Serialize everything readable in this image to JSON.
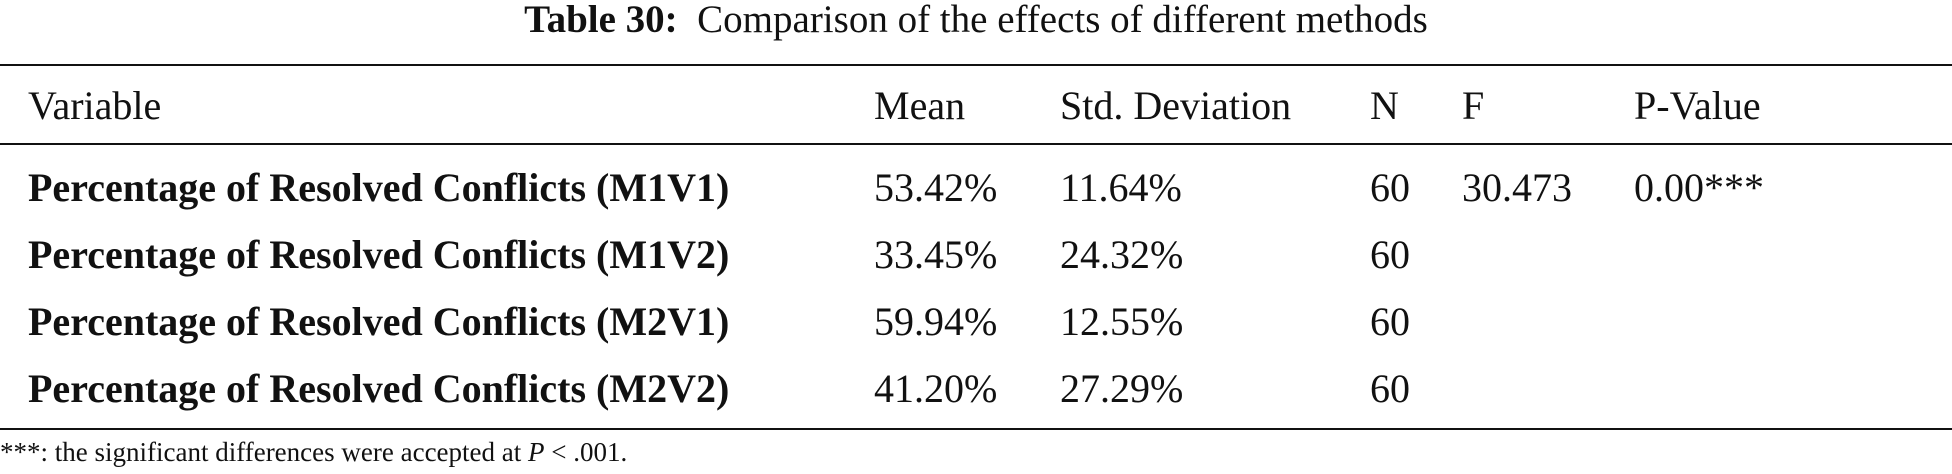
{
  "caption": {
    "label": "Table 30:",
    "text": "Comparison of the effects of different methods"
  },
  "table": {
    "headers": [
      "Variable",
      "Mean",
      "Std. Deviation",
      "N",
      "F",
      "P-Value"
    ],
    "rows": [
      {
        "variable": "Percentage of Resolved Conflicts (M1V1)",
        "mean": "53.42%",
        "std": "11.64%",
        "n": "60",
        "f": "30.473",
        "p": "0.00***"
      },
      {
        "variable": "Percentage of Resolved Conflicts (M1V2)",
        "mean": "33.45%",
        "std": "24.32%",
        "n": "60",
        "f": "",
        "p": ""
      },
      {
        "variable": "Percentage of Resolved Conflicts (M2V1)",
        "mean": "59.94%",
        "std": "12.55%",
        "n": "60",
        "f": "",
        "p": ""
      },
      {
        "variable": "Percentage of Resolved Conflicts (M2V2)",
        "mean": "41.20%",
        "std": "27.29%",
        "n": "60",
        "f": "",
        "p": ""
      }
    ]
  },
  "footnote": {
    "prefix": "***: the significant differences were accepted at ",
    "symbol": "P",
    "suffix": " < .001."
  }
}
